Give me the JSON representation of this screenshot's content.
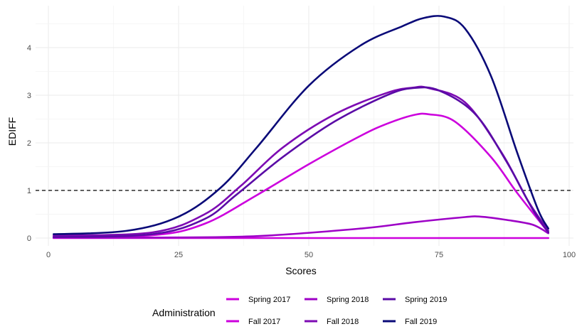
{
  "chart_data": {
    "type": "line",
    "xlabel": "Scores",
    "ylabel": "EDIFF",
    "xlim": [
      0,
      100
    ],
    "ylim": [
      -0.1,
      4.8
    ],
    "x_ticks": [
      0,
      25,
      50,
      75,
      100
    ],
    "y_ticks": [
      0,
      1,
      2,
      3,
      4
    ],
    "grid": true,
    "reference_line": {
      "y": 1,
      "style": "dashed",
      "color": "#000000"
    },
    "legend": {
      "title": "Administration",
      "position": "bottom"
    },
    "series": [
      {
        "name": "Spring 2017",
        "color": "#cc00dd",
        "points": [
          [
            1,
            0.03
          ],
          [
            20,
            0.06
          ],
          [
            30,
            0.3
          ],
          [
            40,
            0.9
          ],
          [
            50,
            1.55
          ],
          [
            60,
            2.15
          ],
          [
            65,
            2.4
          ],
          [
            70,
            2.58
          ],
          [
            73,
            2.6
          ],
          [
            78,
            2.45
          ],
          [
            85,
            1.7
          ],
          [
            90,
            0.95
          ],
          [
            96,
            0.12
          ]
        ]
      },
      {
        "name": "Fall 2017",
        "color": "#cc00dd",
        "points": [
          [
            1,
            0.0
          ],
          [
            50,
            0.0
          ],
          [
            96,
            0.0
          ]
        ]
      },
      {
        "name": "Spring 2018",
        "color": "#9d00c6",
        "points": [
          [
            1,
            0.01
          ],
          [
            20,
            0.01
          ],
          [
            40,
            0.04
          ],
          [
            60,
            0.2
          ],
          [
            70,
            0.33
          ],
          [
            80,
            0.44
          ],
          [
            83,
            0.45
          ],
          [
            88,
            0.38
          ],
          [
            93,
            0.28
          ],
          [
            96,
            0.1
          ]
        ]
      },
      {
        "name": "Fall 2018",
        "color": "#7d0ab3",
        "points": [
          [
            1,
            0.05
          ],
          [
            20,
            0.12
          ],
          [
            30,
            0.5
          ],
          [
            37,
            1.1
          ],
          [
            45,
            1.9
          ],
          [
            55,
            2.6
          ],
          [
            65,
            3.05
          ],
          [
            70,
            3.16
          ],
          [
            73,
            3.15
          ],
          [
            80,
            2.85
          ],
          [
            87,
            1.8
          ],
          [
            92,
            0.8
          ],
          [
            96,
            0.15
          ]
        ]
      },
      {
        "name": "Spring 2019",
        "color": "#5a0ba6",
        "points": [
          [
            1,
            0.02
          ],
          [
            20,
            0.08
          ],
          [
            30,
            0.4
          ],
          [
            36,
            0.9
          ],
          [
            45,
            1.7
          ],
          [
            55,
            2.45
          ],
          [
            65,
            3.0
          ],
          [
            70,
            3.15
          ],
          [
            75,
            3.1
          ],
          [
            82,
            2.6
          ],
          [
            88,
            1.6
          ],
          [
            93,
            0.6
          ],
          [
            96,
            0.12
          ]
        ]
      },
      {
        "name": "Fall 2019",
        "color": "#0a0a78",
        "points": [
          [
            1,
            0.08
          ],
          [
            15,
            0.15
          ],
          [
            25,
            0.45
          ],
          [
            33,
            1.05
          ],
          [
            40,
            1.9
          ],
          [
            50,
            3.2
          ],
          [
            60,
            4.05
          ],
          [
            68,
            4.45
          ],
          [
            72,
            4.62
          ],
          [
            76,
            4.65
          ],
          [
            80,
            4.4
          ],
          [
            85,
            3.4
          ],
          [
            90,
            1.8
          ],
          [
            94,
            0.6
          ],
          [
            96,
            0.2
          ]
        ]
      }
    ]
  }
}
